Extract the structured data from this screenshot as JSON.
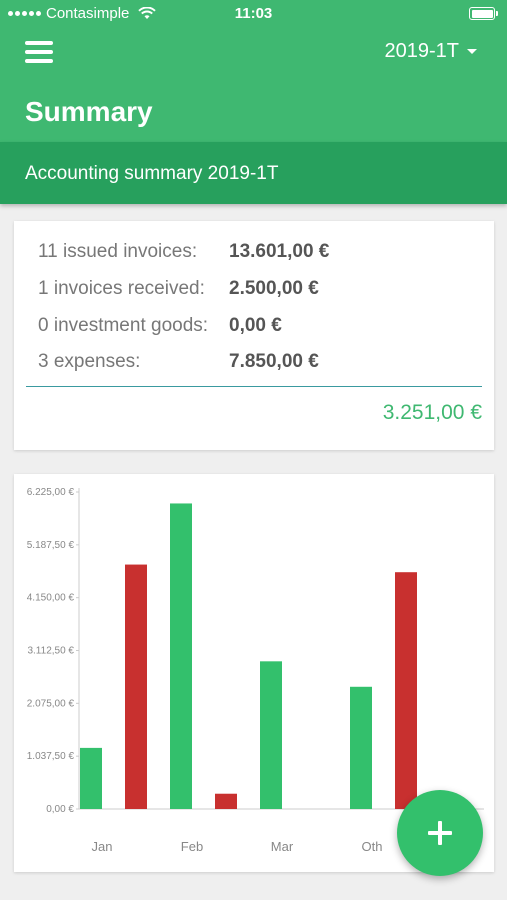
{
  "status_bar": {
    "carrier": "Contasimple",
    "time": "11:03",
    "signal_icon": "signal-dots-icon",
    "wifi_icon": "wifi-icon",
    "battery_icon": "battery-icon"
  },
  "app_bar": {
    "menu_icon": "hamburger-menu-icon",
    "period": "2019-1T",
    "title": "Summary"
  },
  "subheader": {
    "title": "Accounting summary 2019-1T"
  },
  "summary": {
    "rows": [
      {
        "label": "11 issued invoices:",
        "value": "13.601,00 €"
      },
      {
        "label": "1 invoices received:",
        "value": "2.500,00 €"
      },
      {
        "label": "0 investment goods:",
        "value": "0,00 €"
      },
      {
        "label": "3 expenses:",
        "value": "7.850,00 €"
      }
    ],
    "total": "3.251,00 €"
  },
  "colors": {
    "primary": "#3fb871",
    "primary_dark": "#27a05d",
    "income": "#33c06c",
    "expense": "#c8302f",
    "divider": "#3a9aa0"
  },
  "chart_data": {
    "type": "bar",
    "categories": [
      "Jan",
      "Feb",
      "Mar",
      "Oth"
    ],
    "series": [
      {
        "values": [
          1200,
          6000,
          2900,
          2400
        ]
      },
      {
        "values": [
          4800,
          300,
          0,
          4650
        ]
      }
    ],
    "ytick_labels": [
      "0,00 €",
      "1.037,50 €",
      "2.075,00 €",
      "3.112,50 €",
      "4.150,00 €",
      "5.187,50 €",
      "6.225,00 €"
    ],
    "ylim": [
      0,
      6225
    ],
    "grid": false
  },
  "fab": {
    "icon": "plus-icon"
  }
}
